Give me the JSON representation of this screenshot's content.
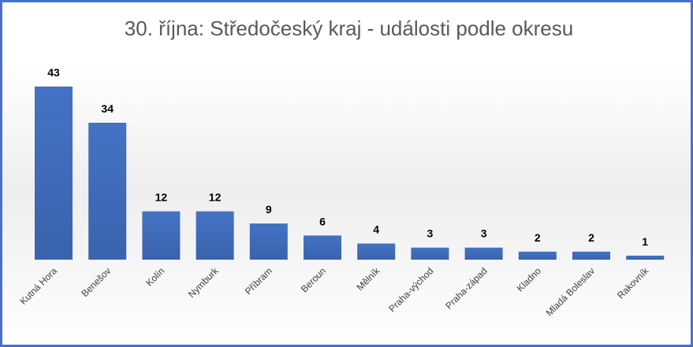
{
  "chart_data": {
    "type": "bar",
    "title": "30. října: Středočeský kraj - události podle okresu",
    "xlabel": "",
    "ylabel": "",
    "categories": [
      "Kutná Hora",
      "Benešov",
      "Kolín",
      "Nymburk",
      "Příbram",
      "Beroun",
      "Mělník",
      "Praha-východ",
      "Praha-západ",
      "Kladno",
      "Mladá Boleslav",
      "Rakovník"
    ],
    "values": [
      43,
      34,
      12,
      12,
      9,
      6,
      4,
      3,
      3,
      2,
      2,
      1
    ],
    "ylim": [
      0,
      43
    ],
    "grid": false,
    "legend": "none",
    "colors": {
      "bar": "#4472c4",
      "bar_dark": "#3a63ad",
      "frame": "#4a72c4",
      "title": "#595959"
    }
  }
}
